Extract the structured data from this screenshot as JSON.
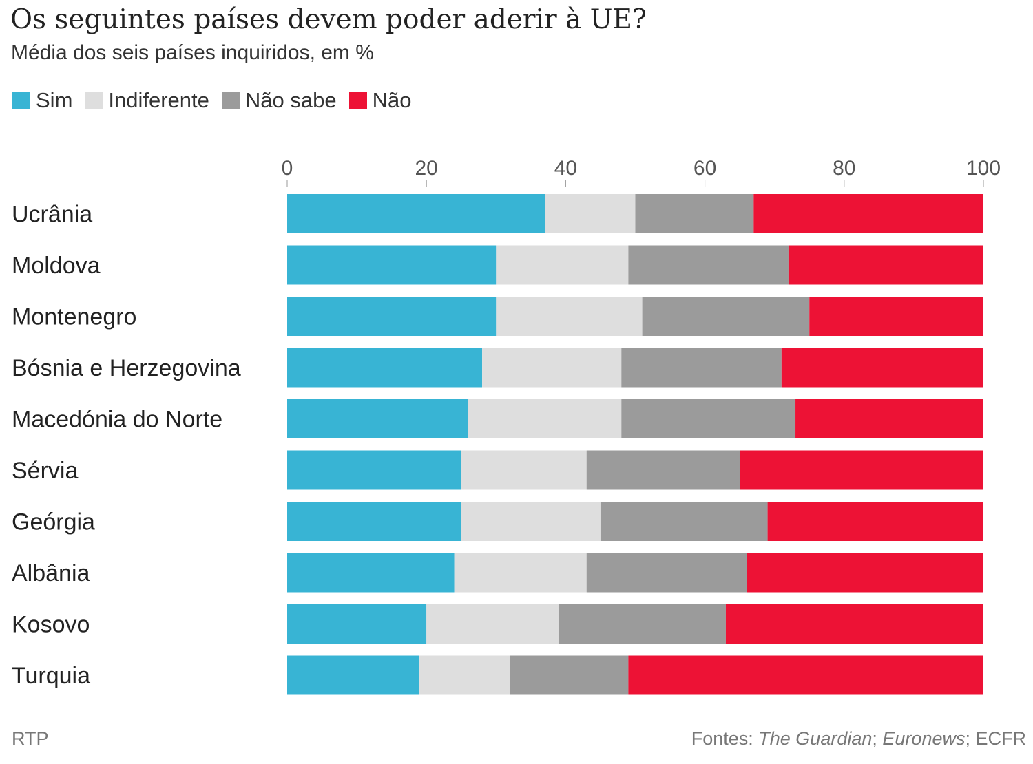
{
  "chart_data": {
    "type": "bar",
    "stacked": true,
    "orientation": "horizontal",
    "title": "Os seguintes países devem poder aderir à UE?",
    "subtitle": "Média dos seis países inquiridos, em %",
    "xlim": [
      0,
      100
    ],
    "xticks": [
      0,
      20,
      40,
      60,
      80,
      100
    ],
    "legend_placement": "top-left",
    "categories": [
      "Ucrânia",
      "Moldova",
      "Montenegro",
      "Bósnia e Herzegovina",
      "Macedónia do Norte",
      "Sérvia",
      "Geórgia",
      "Albânia",
      "Kosovo",
      "Turquia"
    ],
    "series": [
      {
        "name": "Sim",
        "color": "#38b4d4",
        "values": [
          37,
          30,
          30,
          28,
          26,
          25,
          25,
          24,
          20,
          19
        ]
      },
      {
        "name": "Indiferente",
        "color": "#dedede",
        "values": [
          13,
          19,
          21,
          20,
          22,
          18,
          20,
          19,
          19,
          13
        ]
      },
      {
        "name": "Não sabe",
        "color": "#9b9b9b",
        "values": [
          17,
          23,
          24,
          23,
          25,
          22,
          24,
          23,
          24,
          17
        ]
      },
      {
        "name": "Não",
        "color": "#ed1235",
        "values": [
          33,
          28,
          25,
          29,
          27,
          35,
          31,
          34,
          37,
          51
        ]
      }
    ]
  },
  "footer": {
    "left": "RTP",
    "sources_prefix": "Fontes: ",
    "source1": "The Guardian",
    "sep1": "; ",
    "source2": "Euronews",
    "sep2": "; ECFR"
  }
}
